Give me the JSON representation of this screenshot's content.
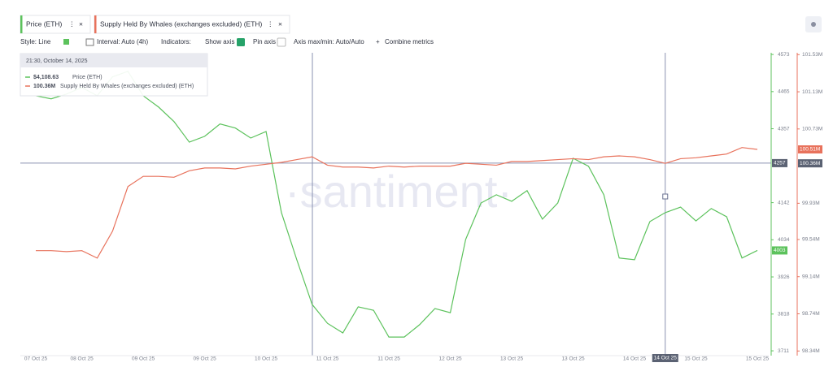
{
  "toolbar": {
    "style": "Style: Line",
    "interval": "Interval: Auto (4h)",
    "indicators": "Indicators:",
    "show_axis": "Show axis",
    "pin_axis": "Pin axis",
    "axis_range": "Axis max/min: Auto/Auto",
    "combine_metrics": "Combine metrics"
  },
  "watermark": "·santiment·",
  "chart_data": {
    "type": "line",
    "categories": [
      "07 Oct 25",
      null,
      null,
      "08 Oct 25",
      null,
      null,
      null,
      "09 Oct 25",
      null,
      null,
      null,
      "09 Oct 25",
      null,
      null,
      null,
      "10 Oct 25",
      null,
      null,
      null,
      "11 Oct 25",
      null,
      null,
      null,
      "11 Oct 25",
      null,
      null,
      null,
      "12 Oct 25",
      null,
      null,
      null,
      "13 Oct 25",
      null,
      null,
      null,
      "13 Oct 25",
      null,
      null,
      null,
      "14 Oct 25",
      null,
      null,
      null,
      "15 Oct 25",
      null,
      null,
      null,
      "15 Oct 25"
    ],
    "series": [
      {
        "name": "Price (ETH)",
        "color": "#5cc25c",
        "values": [
          4453,
          4444,
          4458,
          4477,
          4453,
          4508,
          4524,
          4453,
          4420,
          4378,
          4318,
          4335,
          4371,
          4359,
          4330,
          4349,
          4113,
          3976,
          3846,
          3791,
          3763,
          3839,
          3829,
          3751,
          3751,
          3787,
          3834,
          3822,
          4035,
          4141,
          4165,
          4146,
          4177,
          4094,
          4141,
          4271,
          4248,
          4165,
          3981,
          3976,
          4087,
          4113,
          4129,
          4089,
          4125,
          4101,
          3981,
          4003
        ]
      },
      {
        "name": "Supply Held By Whales (exchanges excluded) (ETH)",
        "color": "#e8725c",
        "axis": "y2",
        "values": [
          99.42,
          99.42,
          99.41,
          99.42,
          99.34,
          99.63,
          100.11,
          100.22,
          100.22,
          100.21,
          100.28,
          100.31,
          100.31,
          100.3,
          100.33,
          100.35,
          100.37,
          100.4,
          100.43,
          100.34,
          100.32,
          100.32,
          100.31,
          100.33,
          100.32,
          100.33,
          100.33,
          100.33,
          100.36,
          100.35,
          100.34,
          100.38,
          100.38,
          100.39,
          100.4,
          100.41,
          100.4,
          100.43,
          100.44,
          100.43,
          100.4,
          100.36,
          100.41,
          100.42,
          100.44,
          100.46,
          100.53,
          100.51
        ],
        "value_labels": [
          null,
          null,
          null,
          null,
          null,
          null,
          null,
          null,
          null,
          null,
          null,
          null,
          null,
          null,
          null,
          null,
          null,
          null,
          null,
          null,
          null,
          null,
          null,
          null,
          null,
          null,
          null,
          null,
          null,
          null,
          null,
          null,
          null,
          null,
          null,
          null,
          null,
          null,
          null,
          null,
          null,
          null,
          null,
          null,
          null,
          null,
          null,
          "100.51M"
        ]
      }
    ],
    "ylim": [
      3697,
      4578
    ],
    "yticks": [
      3711,
      3818,
      3926,
      4034,
      4142,
      4357,
      4465,
      4573
    ],
    "y2lim": [
      98.29,
      101.55
    ],
    "y2ticks": [
      {
        "value": 98.34,
        "label": "98.34M"
      },
      {
        "value": 98.74,
        "label": "98.74M"
      },
      {
        "value": 99.14,
        "label": "99.14M"
      },
      {
        "value": 99.54,
        "label": "99.54M"
      },
      {
        "value": 99.93,
        "label": "99.93M"
      },
      {
        "value": 100.73,
        "label": "100.73M"
      },
      {
        "value": 101.13,
        "label": "101.13M"
      },
      {
        "value": 101.53,
        "label": "101.53M"
      }
    ],
    "grid": false,
    "crosshair": {
      "category": 41,
      "x_label": "14 Oct 25",
      "y": 4257,
      "y2": {
        "value": 100.36,
        "label": "100.36M"
      }
    },
    "tooltip": {
      "time": "21:30, October 14, 2025",
      "items": [
        {
          "value": {
            "value": 4108.63,
            "label": "$4,108.63"
          }
        },
        {
          "value": {
            "value": 100.36,
            "label": "100.36M"
          }
        }
      ]
    }
  }
}
